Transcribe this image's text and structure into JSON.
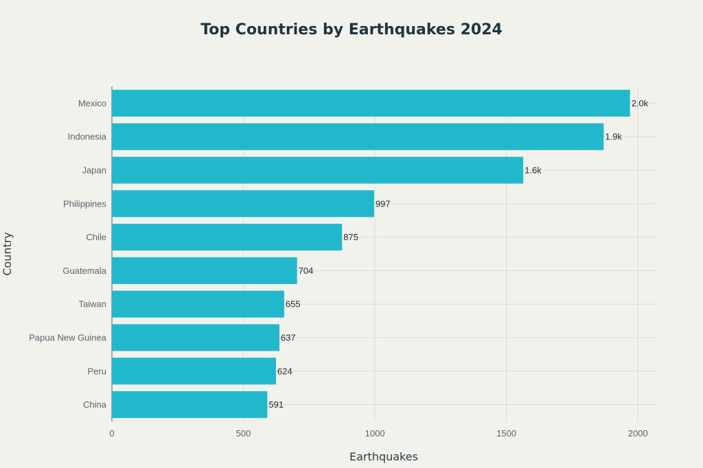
{
  "chart_data": {
    "type": "bar",
    "orientation": "horizontal",
    "title": "Top Countries by Earthquakes 2024",
    "xlabel": "Earthquakes",
    "ylabel": "Country",
    "categories": [
      "Mexico",
      "Indonesia",
      "Japan",
      "Philippines",
      "Chile",
      "Guatemala",
      "Taiwan",
      "Papua New Guinea",
      "Peru",
      "China"
    ],
    "values": [
      1970,
      1870,
      1564,
      997,
      875,
      704,
      655,
      637,
      624,
      591
    ],
    "data_labels": [
      "2.0k",
      "1.9k",
      "1.6k",
      "997",
      "875",
      "704",
      "655",
      "637",
      "624",
      "591"
    ],
    "xlim": [
      0,
      2070
    ],
    "x_ticks": [
      0,
      500,
      1000,
      1500,
      2000
    ],
    "x_tick_labels": [
      "0",
      "500",
      "1000",
      "1500",
      "2000"
    ],
    "grid": true,
    "bar_color": "#22b8cc"
  }
}
